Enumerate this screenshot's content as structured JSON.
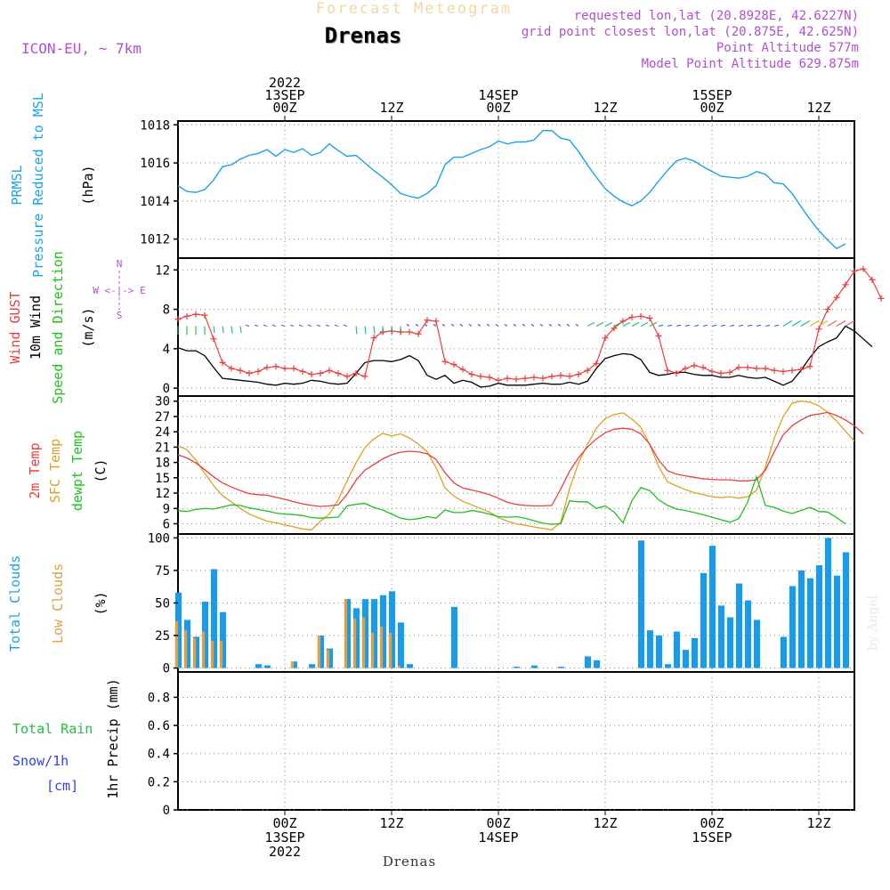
{
  "header": {
    "faded_title": "Forecast Meteogram",
    "location": "Drenas",
    "model": "ICON-EU, ~ 7km",
    "requested": "requested lon,lat (20.8928E, 42.6227N)",
    "gridpoint": "grid point closest lon,lat (20.875E, 42.625N)",
    "point_alt": "Point Altitude 577m",
    "model_alt": "Model Point Altitude 629.875m",
    "footer_name": "Drenas",
    "credit": "by Angel"
  },
  "colors": {
    "pressure": "#1aa3e8",
    "gust": "#e84040",
    "wind": "#000000",
    "temp": "#e84040",
    "sfc": "#e0a020",
    "dewpt": "#20c020",
    "total": "#1a9ae8",
    "low": "#e0a040",
    "purple": "#b050d0",
    "green": "#20c040",
    "blue": "#3040e8"
  },
  "time_axis": {
    "top": [
      {
        "t": 12,
        "lines": [
          "2022",
          "13SEP",
          "00Z"
        ]
      },
      {
        "t": 24,
        "lines": [
          "12Z"
        ]
      },
      {
        "t": 36,
        "lines": [
          "14SEP",
          "00Z"
        ]
      },
      {
        "t": 48,
        "lines": [
          "12Z"
        ]
      },
      {
        "t": 60,
        "lines": [
          "15SEP",
          "00Z"
        ]
      },
      {
        "t": 72,
        "lines": [
          "12Z"
        ]
      }
    ],
    "bottom": [
      {
        "t": 12,
        "lines": [
          "00Z",
          "13SEP",
          "2022"
        ]
      },
      {
        "t": 24,
        "lines": [
          "12Z"
        ]
      },
      {
        "t": 36,
        "lines": [
          "00Z",
          "14SEP"
        ]
      },
      {
        "t": 48,
        "lines": [
          "12Z"
        ]
      },
      {
        "t": 60,
        "lines": [
          "00Z",
          "15SEP"
        ]
      },
      {
        "t": 72,
        "lines": [
          "12Z"
        ]
      }
    ]
  },
  "labels": {
    "prmsl": "PRMSL",
    "pressure_long": "Pressure Reduced to MSL",
    "hpa": "(hPa)",
    "wind_gust": "Wind GUST",
    "wind_10m": "10m Wind",
    "speed_dir": "Speed and Direction",
    "ms": "(m/s)",
    "compass_n": "N",
    "compass_s": "S",
    "compass_ew": "W <-|-> E",
    "temp_2m": "2m Temp",
    "sfc_temp": "SFC Temp",
    "dewpt": "dewpt Temp",
    "c": "(C)",
    "total_clouds": "Total Clouds",
    "low_clouds": "Low Clouds",
    "pct": "(%)",
    "total_rain": "Total  Rain",
    "snow": "Snow/1h",
    "cm": "[cm]",
    "precip": "1hr Precip (mm)"
  },
  "chart_data": [
    {
      "type": "line",
      "title": "PRMSL Pressure Reduced to MSL",
      "ylabel": "(hPa)",
      "ylim": [
        1011,
        1018.2
      ],
      "yticks": [
        1012,
        1014,
        1016,
        1018
      ],
      "x": [
        0,
        1,
        2,
        3,
        4,
        5,
        6,
        7,
        8,
        9,
        10,
        11,
        12,
        13,
        14,
        15,
        16,
        17,
        18,
        19,
        20,
        21,
        22,
        23,
        24,
        25,
        26,
        27,
        28,
        29,
        30,
        31,
        32,
        33,
        34,
        35,
        36,
        37,
        38,
        39,
        40,
        41,
        42,
        43,
        44,
        45,
        46,
        47,
        48,
        49,
        50,
        51,
        52,
        53,
        54,
        55,
        56,
        57,
        58,
        59,
        60,
        61,
        62,
        63,
        64,
        65,
        66,
        67,
        68,
        69,
        70,
        71,
        72,
        73,
        74,
        75
      ],
      "series": [
        {
          "name": "PRMSL",
          "values": [
            1014.8,
            1014.5,
            1014.45,
            1014.6,
            1015.1,
            1015.8,
            1015.9,
            1016.2,
            1016.4,
            1016.5,
            1016.7,
            1016.35,
            1016.7,
            1016.55,
            1016.75,
            1016.4,
            1016.55,
            1017.0,
            1016.65,
            1016.35,
            1016.4,
            1016.0,
            1015.6,
            1015.25,
            1014.85,
            1014.4,
            1014.25,
            1014.15,
            1014.4,
            1014.8,
            1015.9,
            1016.3,
            1016.3,
            1016.5,
            1016.7,
            1016.85,
            1017.15,
            1017.0,
            1017.1,
            1017.1,
            1017.2,
            1017.7,
            1017.7,
            1017.3,
            1017.2,
            1016.6,
            1015.9,
            1015.25,
            1014.65,
            1014.25,
            1013.95,
            1013.75,
            1014.0,
            1014.45,
            1015.05,
            1015.6,
            1016.1,
            1016.25,
            1016.1,
            1015.8,
            1015.55,
            1015.3,
            1015.25,
            1015.2,
            1015.3,
            1015.55,
            1015.4,
            1014.95,
            1014.9,
            1014.4,
            1013.7,
            1013.05,
            1012.45,
            1011.95,
            1011.5,
            1011.75
          ]
        }
      ]
    },
    {
      "type": "line",
      "title": "Wind GUST / 10m Wind Speed and Direction",
      "ylabel": "(m/s)",
      "ylim": [
        -0.8,
        13.2
      ],
      "yticks": [
        0,
        4,
        8,
        12
      ],
      "series": [
        {
          "name": "Wind GUST",
          "values": [
            7.0,
            7.3,
            7.5,
            7.4,
            5.0,
            2.6,
            2.0,
            1.8,
            1.5,
            1.7,
            2.1,
            2.2,
            2.0,
            2.0,
            1.7,
            1.4,
            1.5,
            1.8,
            1.5,
            1.2,
            1.5,
            1.2,
            5.1,
            5.7,
            5.8,
            5.7,
            5.7,
            5.5,
            6.9,
            6.8,
            2.7,
            2.4,
            1.9,
            1.4,
            1.2,
            1.1,
            0.8,
            1.0,
            0.9,
            1.0,
            1.1,
            1.0,
            1.2,
            1.3,
            1.2,
            1.4,
            1.8,
            2.5,
            5.1,
            6.1,
            6.8,
            7.2,
            7.3,
            7.1,
            5.3,
            1.8,
            1.5,
            2.0,
            2.3,
            2.1,
            1.7,
            1.5,
            1.6,
            2.1,
            2.1,
            2.0,
            2.0,
            1.8,
            1.7,
            1.8,
            1.9,
            2.2,
            6.0,
            8.0,
            9.2,
            10.5,
            11.9,
            12.1,
            11.0,
            9.1
          ]
        },
        {
          "name": "10m Wind",
          "values": [
            4.1,
            3.8,
            3.8,
            3.3,
            2.1,
            1.0,
            0.9,
            0.8,
            0.7,
            0.6,
            0.4,
            0.3,
            0.5,
            0.4,
            0.5,
            0.8,
            0.7,
            0.5,
            0.4,
            0.5,
            1.5,
            2.6,
            2.8,
            2.8,
            2.7,
            2.9,
            3.3,
            2.8,
            1.3,
            0.9,
            1.3,
            0.5,
            0.8,
            0.6,
            0.1,
            0.2,
            0.5,
            0.3,
            0.3,
            0.3,
            0.4,
            0.5,
            0.4,
            0.4,
            0.6,
            0.4,
            0.7,
            2.0,
            3.0,
            3.3,
            3.5,
            3.4,
            2.9,
            1.6,
            1.3,
            1.4,
            1.6,
            1.6,
            1.4,
            1.3,
            1.3,
            1.1,
            1.1,
            1.3,
            1.1,
            1.0,
            1.1,
            0.7,
            0.3,
            0.7,
            1.8,
            3.1,
            4.2,
            4.7,
            5.1,
            6.3,
            5.8,
            5.0,
            4.2
          ]
        }
      ]
    },
    {
      "type": "line",
      "title": "2m Temp / SFC Temp / dewpt Temp",
      "ylabel": "(C)",
      "ylim": [
        4,
        31
      ],
      "yticks": [
        6,
        9,
        12,
        15,
        18,
        21,
        24,
        27,
        30
      ],
      "series": [
        {
          "name": "2m Temp",
          "values": [
            19.5,
            18.9,
            17.9,
            16.6,
            15.2,
            14.0,
            13.2,
            12.5,
            11.9,
            11.7,
            11.6,
            11.2,
            10.8,
            10.3,
            9.9,
            9.6,
            9.4,
            9.5,
            9.7,
            11.8,
            14.5,
            16.5,
            17.6,
            18.7,
            19.5,
            20.0,
            20.2,
            20.1,
            19.7,
            18.6,
            16.0,
            14.0,
            13.0,
            12.6,
            12.2,
            11.7,
            11.0,
            10.2,
            9.8,
            9.6,
            9.5,
            9.5,
            9.6,
            12.8,
            16.3,
            18.9,
            21.0,
            22.6,
            23.8,
            24.5,
            24.7,
            24.5,
            23.6,
            21.6,
            18.5,
            16.4,
            15.7,
            15.4,
            15.1,
            14.8,
            14.7,
            14.6,
            14.6,
            14.4,
            14.4,
            14.6,
            16.5,
            20.1,
            23.4,
            25.2,
            26.3,
            27.2,
            27.5,
            27.8,
            27.2,
            26.3,
            25.2,
            23.6
          ]
        },
        {
          "name": "SFC Temp",
          "values": [
            21.3,
            20.5,
            18.5,
            15.9,
            13.5,
            11.5,
            10.3,
            9.0,
            7.9,
            7.2,
            6.5,
            6.2,
            5.8,
            5.4,
            5.0,
            4.8,
            6.5,
            7.9,
            10.7,
            14.4,
            17.9,
            20.9,
            22.6,
            23.7,
            23.2,
            23.6,
            22.8,
            21.6,
            20.1,
            17.0,
            13.0,
            11.4,
            10.4,
            9.7,
            9.0,
            8.3,
            7.2,
            6.5,
            6.0,
            5.7,
            5.4,
            5.1,
            4.8,
            6.3,
            12.9,
            17.9,
            21.5,
            24.7,
            26.6,
            27.4,
            27.7,
            26.5,
            24.9,
            21.5,
            17.2,
            14.2,
            13.4,
            12.7,
            12.1,
            11.7,
            11.3,
            11.1,
            11.3,
            11.0,
            11.3,
            12.5,
            17.1,
            22.8,
            27.0,
            29.6,
            30.0,
            29.8,
            29.1,
            27.8,
            26.1,
            24.1,
            22.2
          ]
        },
        {
          "name": "dewpt Temp",
          "values": [
            8.6,
            8.4,
            8.8,
            9.0,
            8.9,
            9.3,
            9.7,
            9.6,
            9.1,
            8.8,
            8.5,
            8.1,
            7.9,
            7.8,
            7.6,
            7.2,
            7.1,
            7.2,
            7.3,
            9.5,
            9.8,
            10.0,
            9.2,
            8.7,
            7.9,
            7.1,
            6.8,
            7.0,
            7.4,
            7.1,
            8.7,
            8.2,
            8.2,
            8.6,
            8.3,
            7.9,
            7.4,
            7.3,
            7.4,
            7.1,
            6.6,
            6.1,
            5.9,
            6.0,
            10.5,
            10.3,
            10.3,
            9.0,
            9.5,
            8.3,
            6.2,
            10.5,
            13.1,
            12.5,
            10.7,
            9.6,
            8.9,
            8.6,
            8.2,
            7.8,
            7.3,
            6.8,
            6.3,
            7.0,
            10.2,
            15.2,
            9.6,
            9.2,
            8.5,
            8.0,
            8.6,
            9.2,
            8.4,
            8.3,
            7.2,
            6.0
          ]
        }
      ]
    },
    {
      "type": "bar",
      "title": "Total Clouds / Low Clouds",
      "ylabel": "(%)",
      "ylim": [
        -3,
        103
      ],
      "yticks": [
        0,
        25,
        50,
        75,
        100
      ],
      "series": [
        {
          "name": "Total Clouds",
          "values": [
            58,
            37,
            24,
            51,
            76,
            43,
            0,
            0,
            0,
            3,
            2,
            0,
            0,
            5,
            0,
            3,
            25,
            15,
            0,
            53,
            46,
            53,
            53,
            56,
            59,
            35,
            3,
            0,
            0,
            0,
            0,
            47,
            0,
            0,
            0,
            0,
            0,
            0,
            1,
            0,
            2,
            0,
            0,
            1,
            0,
            0,
            9,
            6,
            0,
            0,
            0,
            0,
            98,
            29,
            25,
            3,
            28,
            14,
            23,
            73,
            94,
            48,
            39,
            65,
            52,
            37,
            0,
            0,
            24,
            63,
            75,
            69,
            79,
            100,
            71,
            89
          ]
        },
        {
          "name": "Low Clouds",
          "values": [
            36,
            29,
            23,
            28,
            21,
            21,
            0,
            0,
            0,
            0,
            0,
            0,
            0,
            5,
            0,
            0,
            25,
            14,
            0,
            53,
            38,
            39,
            27,
            32,
            27,
            2,
            0,
            0,
            0,
            0,
            0,
            0,
            0,
            0,
            0,
            0,
            0,
            0,
            0,
            0,
            0,
            0,
            0,
            0,
            0,
            0,
            0,
            0,
            0,
            0,
            0,
            0,
            0,
            0,
            0,
            0,
            0,
            0,
            0,
            0,
            0,
            0,
            0,
            0,
            0,
            0,
            0,
            0,
            0,
            0,
            0,
            0,
            0,
            0,
            0,
            0
          ]
        }
      ]
    },
    {
      "type": "bar",
      "title": "1hr Precip",
      "ylabel": "1hr Precip (mm)",
      "ylim": [
        0,
        0.98
      ],
      "yticks": [
        0,
        0.2,
        0.4,
        0.6,
        0.8
      ],
      "series": [
        {
          "name": "Total Rain",
          "values": []
        },
        {
          "name": "Snow/1h",
          "values": []
        }
      ]
    }
  ]
}
